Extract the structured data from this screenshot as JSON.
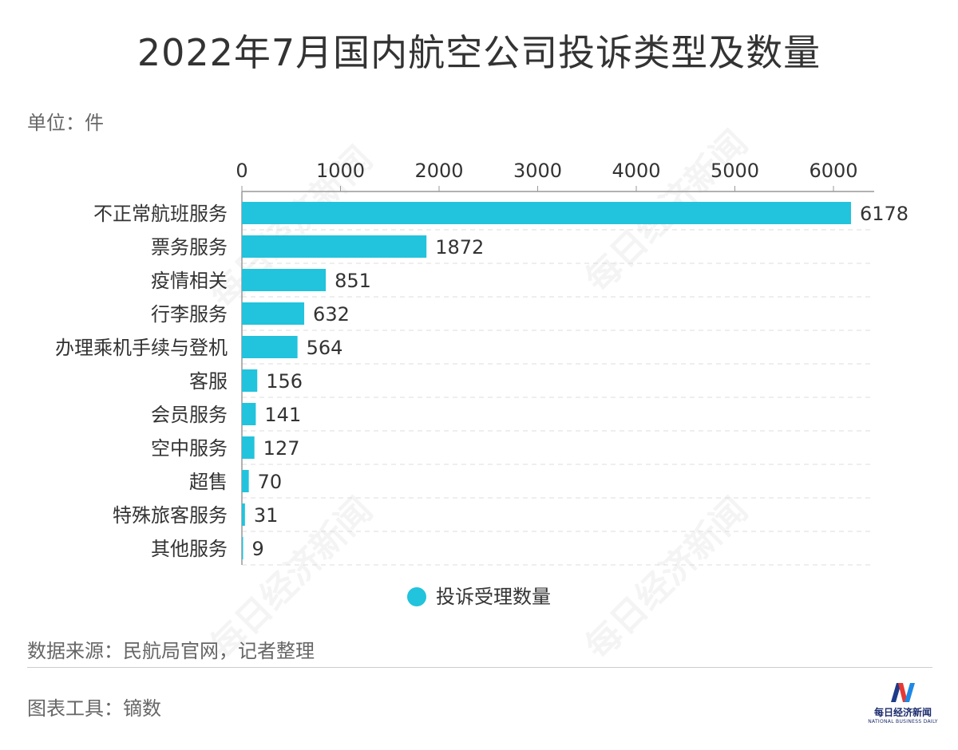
{
  "title": "2022年7月国内航空公司投诉类型及数量",
  "unit": "单位：件",
  "legend": {
    "label": "投诉受理数量",
    "color": "#22c3dc"
  },
  "source": "数据来源：民航局官网，记者整理",
  "tool": "图表工具：镝数",
  "brand": {
    "name_cn": "每日经济新闻",
    "name_en": "NATIONAL BUSINESS DAILY"
  },
  "watermark": "每日经济新闻",
  "chart_data": {
    "type": "bar",
    "orientation": "horizontal",
    "categories": [
      "不正常航班服务",
      "票务服务",
      "疫情相关",
      "行李服务",
      "办理乘机手续与登机",
      "客服",
      "会员服务",
      "空中服务",
      "超售",
      "特殊旅客服务",
      "其他服务"
    ],
    "series": [
      {
        "name": "投诉受理数量",
        "values": [
          6178,
          1872,
          851,
          632,
          564,
          156,
          141,
          127,
          70,
          31,
          9
        ],
        "color": "#22c3dc"
      }
    ],
    "xlim": [
      0,
      6400
    ],
    "xticks": [
      0,
      1000,
      2000,
      3000,
      4000,
      5000,
      6000
    ],
    "axis_position": "top",
    "grid": true,
    "legend_position": "bottom",
    "data_labels": true
  }
}
